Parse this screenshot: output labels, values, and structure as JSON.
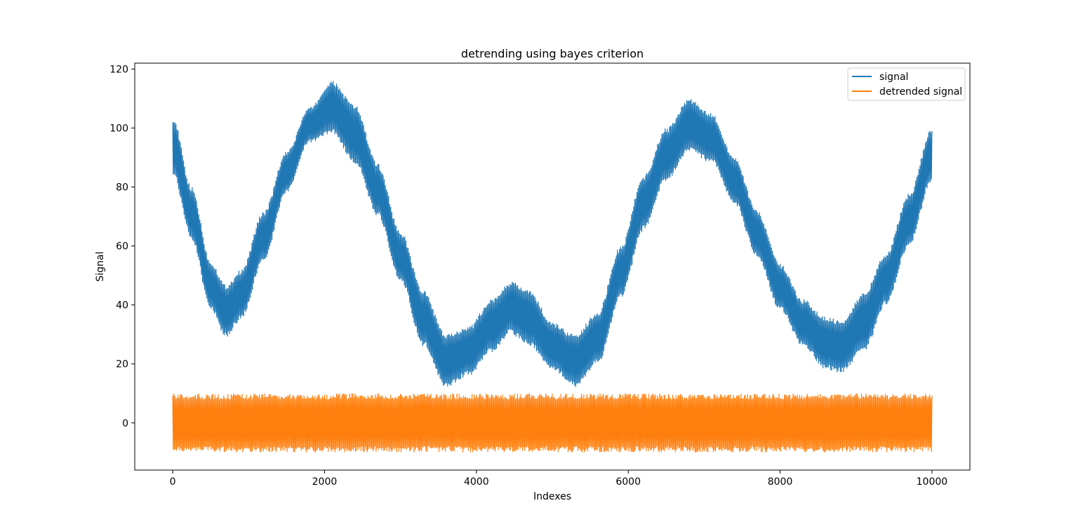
{
  "chart_data": {
    "type": "line",
    "title": "detrending using bayes criterion",
    "xlabel": "Indexes",
    "ylabel": "Signal",
    "xlim": [
      -500,
      10500
    ],
    "ylim": [
      -16,
      122
    ],
    "xticks": [
      0,
      2000,
      4000,
      6000,
      8000,
      10000
    ],
    "xtick_labels": [
      "0",
      "2000",
      "4000",
      "6000",
      "8000",
      "10000"
    ],
    "yticks": [
      0,
      20,
      40,
      60,
      80,
      100,
      120
    ],
    "ytick_labels": [
      "0",
      "20",
      "40",
      "60",
      "80",
      "100",
      "120"
    ],
    "grid": false,
    "legend_position": "top-right",
    "series": [
      {
        "name": "signal",
        "color": "#1f77b4",
        "x": [
          0,
          250,
          500,
          700,
          900,
          1200,
          1500,
          1800,
          2100,
          2400,
          2700,
          3000,
          3300,
          3600,
          3900,
          4200,
          4450,
          4700,
          5000,
          5300,
          5600,
          5900,
          6200,
          6500,
          6800,
          7100,
          7400,
          7700,
          8000,
          8300,
          8600,
          8800,
          9100,
          9400,
          9700,
          10000
        ],
        "low": [
          84,
          62,
          38,
          29,
          35,
          55,
          78,
          95,
          98,
          88,
          70,
          48,
          26,
          12,
          16,
          24,
          30,
          26,
          18,
          12,
          20,
          42,
          65,
          82,
          92,
          88,
          74,
          56,
          38,
          26,
          18,
          17,
          24,
          40,
          60,
          82
        ],
        "high": [
          104,
          80,
          55,
          47,
          52,
          72,
          92,
          107,
          116,
          108,
          88,
          65,
          45,
          30,
          33,
          42,
          48,
          45,
          34,
          30,
          38,
          60,
          84,
          100,
          110,
          105,
          90,
          72,
          54,
          42,
          36,
          35,
          44,
          58,
          78,
          100
        ]
      },
      {
        "name": "detrended signal",
        "color": "#ff7f0e",
        "x": [
          0,
          10000
        ],
        "low": [
          -10,
          -10
        ],
        "high": [
          10,
          10
        ]
      }
    ]
  }
}
